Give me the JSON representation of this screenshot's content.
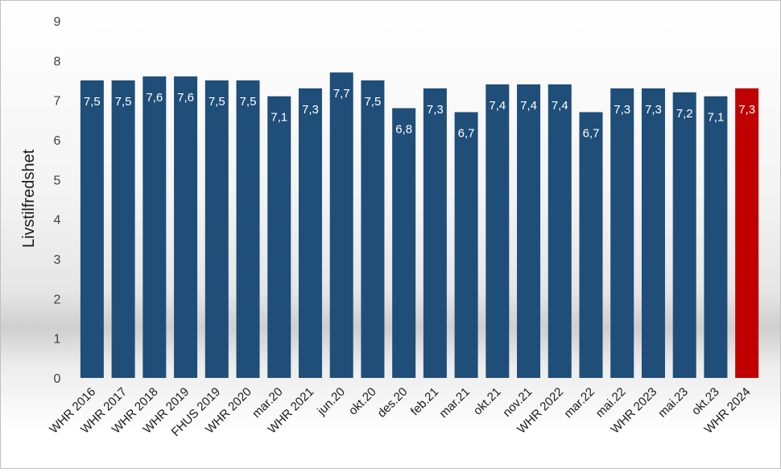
{
  "chart_data": {
    "type": "bar",
    "title": "",
    "xlabel": "",
    "ylabel": "Livstilfredshet",
    "ylim": [
      0,
      9
    ],
    "yticks": [
      0,
      1,
      2,
      3,
      4,
      5,
      6,
      7,
      8,
      9
    ],
    "grid": false,
    "legend": "none",
    "categories": [
      "WHR 2016",
      "WHR 2017",
      "WHR 2018",
      "WHR 2019",
      "FHUS 2019",
      "WHR 2020",
      "mar.20",
      "WHR 2021",
      "jun.20",
      "okt.20",
      "des.20",
      "feb.21",
      "mar.21",
      "okt.21",
      "nov.21",
      "WHR 2022",
      "mar.22",
      "mai.22",
      "WHR 2023",
      "mai.23",
      "okt.23",
      "WHR 2024"
    ],
    "values": [
      7.5,
      7.5,
      7.6,
      7.6,
      7.5,
      7.5,
      7.1,
      7.3,
      7.7,
      7.5,
      6.8,
      7.3,
      6.7,
      7.4,
      7.4,
      7.4,
      6.7,
      7.3,
      7.3,
      7.2,
      7.1,
      7.3
    ],
    "value_labels": [
      "7,5",
      "7,5",
      "7,6",
      "7,6",
      "7,5",
      "7,5",
      "7,1",
      "7,3",
      "7,7",
      "7,5",
      "6,8",
      "7,3",
      "6,7",
      "7,4",
      "7,4",
      "7,4",
      "6,7",
      "7,3",
      "7,3",
      "7,2",
      "7,1",
      "7,3"
    ],
    "highlight_index": 21,
    "colors": {
      "bar": "#1f4e79",
      "highlight": "#c00000"
    }
  }
}
